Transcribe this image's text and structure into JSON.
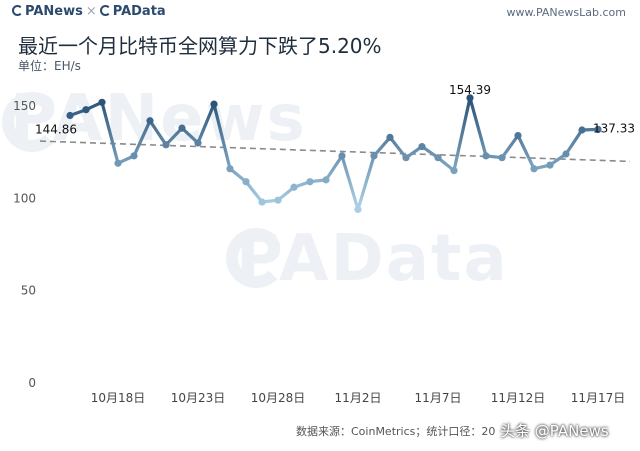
{
  "header": {
    "brand_primary": "PANews",
    "brand_sep": "×",
    "brand_secondary": "PAData",
    "site": "www.PANewsLab.com"
  },
  "watermarks": [
    "PANews",
    "PAData"
  ],
  "footer": {
    "source": "数据来源：CoinMetrics；统计口径：20",
    "corner_watermark": "头条 @PANews"
  },
  "colors": {
    "line_start": "#2c5479",
    "line_light": "#a9cfe6",
    "trend": "#8a8a8a"
  },
  "chart_data": {
    "type": "line",
    "title": "最近一个月比特币全网算力下跌了5.20%",
    "ylabel": "单位：EH/s",
    "ylim": [
      0,
      160
    ],
    "yticks": [
      0,
      50,
      100,
      150
    ],
    "xticks": [
      "10月18日",
      "10月23日",
      "10月28日",
      "11月2日",
      "11月7日",
      "11月12日",
      "11月17日"
    ],
    "x": [
      "10月15日",
      "10月16日",
      "10月17日",
      "10月18日",
      "10月19日",
      "10月20日",
      "10月21日",
      "10月22日",
      "10月23日",
      "10月24日",
      "10月25日",
      "10月26日",
      "10月27日",
      "10月28日",
      "10月29日",
      "10月30日",
      "10月31日",
      "11月1日",
      "11月2日",
      "11月3日",
      "11月4日",
      "11月5日",
      "11月6日",
      "11月7日",
      "11月8日",
      "11月9日",
      "11月10日",
      "11月11日",
      "11月12日",
      "11月13日",
      "11月14日",
      "11月15日",
      "11月16日",
      "11月17日"
    ],
    "values": [
      144.86,
      148,
      152,
      119,
      123,
      142,
      129,
      138,
      130,
      151,
      116,
      109,
      98,
      99,
      106,
      109,
      110,
      123,
      94,
      123,
      133,
      122,
      128,
      122,
      115,
      154.39,
      123,
      122,
      134,
      116,
      118,
      124,
      137,
      137.33
    ],
    "data_labels": [
      {
        "index": 0,
        "text": "144.86"
      },
      {
        "index": 25,
        "text": "154.39"
      },
      {
        "index": 33,
        "text": "137.33"
      }
    ],
    "trendline": {
      "start": 131,
      "end": 120
    },
    "grid": false,
    "legend": "none"
  }
}
